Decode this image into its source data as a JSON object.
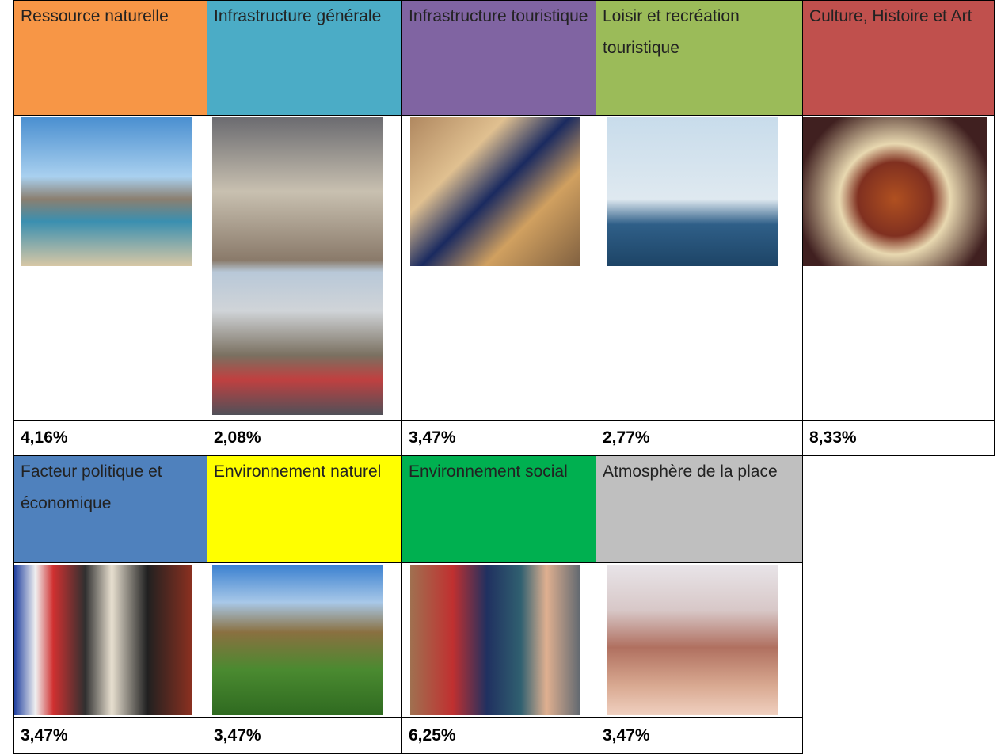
{
  "table": {
    "rows": [
      [
        "Ressource naturelle",
        "Infrastructure générale",
        "Infrastructure touristique",
        "Loisir et recréation touristique",
        "Culture, Histoire et Art"
      ],
      [
        "4,16%",
        "2,08%",
        "3,47%",
        "2,77%",
        "8,33%"
      ],
      [
        "Facteur politique et économique",
        "Environnement naturel",
        "Environnement social",
        "Atmosphère de la place"
      ],
      [
        "3,47%",
        "3,47%",
        "6,25%",
        "3,47%"
      ]
    ]
  }
}
